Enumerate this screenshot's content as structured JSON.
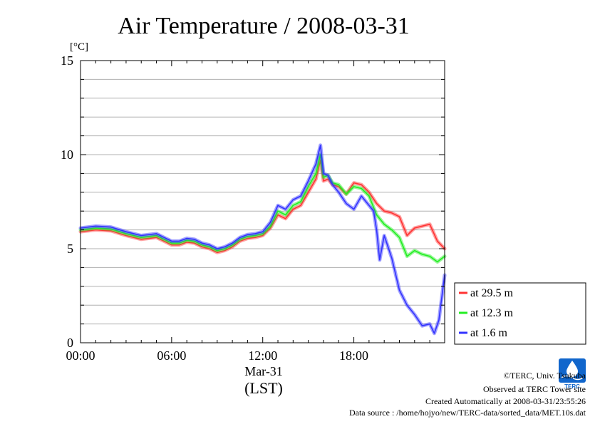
{
  "chart_data": {
    "type": "line",
    "title": "Air Temperature / 2008-03-31",
    "y_unit": "[°C]",
    "ylim": [
      0,
      15
    ],
    "yticks": [
      0,
      5,
      10,
      15
    ],
    "xlim": [
      0,
      23.98
    ],
    "x_ticks": [
      {
        "x": 0,
        "label": "00:00"
      },
      {
        "x": 6,
        "label": "06:00"
      },
      {
        "x": 12,
        "label": "12:00"
      },
      {
        "x": 18,
        "label": "18:00"
      }
    ],
    "x_sublabel": "Mar-31",
    "xlabel": "(LST)",
    "grid": true,
    "legend_position": "right",
    "series": [
      {
        "name": "at 29.5 m",
        "color": "#ff3333",
        "points": [
          [
            0,
            5.9
          ],
          [
            1,
            6.0
          ],
          [
            2,
            5.95
          ],
          [
            3,
            5.7
          ],
          [
            4,
            5.5
          ],
          [
            5,
            5.6
          ],
          [
            5.5,
            5.4
          ],
          [
            6,
            5.2
          ],
          [
            6.5,
            5.2
          ],
          [
            7,
            5.35
          ],
          [
            7.5,
            5.3
          ],
          [
            8,
            5.1
          ],
          [
            8.5,
            5.0
          ],
          [
            9,
            4.8
          ],
          [
            9.5,
            4.9
          ],
          [
            10,
            5.1
          ],
          [
            10.5,
            5.4
          ],
          [
            11,
            5.55
          ],
          [
            11.5,
            5.6
          ],
          [
            12,
            5.7
          ],
          [
            12.5,
            6.1
          ],
          [
            13,
            6.8
          ],
          [
            13.5,
            6.6
          ],
          [
            14,
            7.1
          ],
          [
            14.5,
            7.3
          ],
          [
            15,
            8.0
          ],
          [
            15.5,
            8.7
          ],
          [
            15.8,
            9.7
          ],
          [
            16,
            8.6
          ],
          [
            16.3,
            8.7
          ],
          [
            16.6,
            8.4
          ],
          [
            17,
            8.3
          ],
          [
            17.5,
            7.9
          ],
          [
            18,
            8.5
          ],
          [
            18.5,
            8.4
          ],
          [
            19,
            8.0
          ],
          [
            19.5,
            7.4
          ],
          [
            20,
            7.0
          ],
          [
            20.5,
            6.9
          ],
          [
            21,
            6.7
          ],
          [
            21.5,
            5.7
          ],
          [
            22,
            6.1
          ],
          [
            22.5,
            6.2
          ],
          [
            23,
            6.3
          ],
          [
            23.5,
            5.4
          ],
          [
            23.98,
            5.0
          ]
        ]
      },
      {
        "name": "at 12.3 m",
        "color": "#22ee22",
        "points": [
          [
            0,
            6.0
          ],
          [
            1,
            6.1
          ],
          [
            2,
            6.05
          ],
          [
            3,
            5.8
          ],
          [
            4,
            5.6
          ],
          [
            5,
            5.7
          ],
          [
            5.5,
            5.5
          ],
          [
            6,
            5.3
          ],
          [
            6.5,
            5.3
          ],
          [
            7,
            5.45
          ],
          [
            7.5,
            5.4
          ],
          [
            8,
            5.2
          ],
          [
            8.5,
            5.1
          ],
          [
            9,
            4.9
          ],
          [
            9.5,
            5.0
          ],
          [
            10,
            5.2
          ],
          [
            10.5,
            5.5
          ],
          [
            11,
            5.65
          ],
          [
            11.5,
            5.7
          ],
          [
            12,
            5.8
          ],
          [
            12.5,
            6.2
          ],
          [
            13,
            7.0
          ],
          [
            13.5,
            6.8
          ],
          [
            14,
            7.3
          ],
          [
            14.5,
            7.5
          ],
          [
            15,
            8.3
          ],
          [
            15.5,
            9.0
          ],
          [
            15.8,
            10.0
          ],
          [
            16,
            8.8
          ],
          [
            16.3,
            8.9
          ],
          [
            16.6,
            8.5
          ],
          [
            17,
            8.4
          ],
          [
            17.5,
            7.9
          ],
          [
            18,
            8.3
          ],
          [
            18.5,
            8.2
          ],
          [
            19,
            7.8
          ],
          [
            19.5,
            6.8
          ],
          [
            20,
            6.3
          ],
          [
            20.5,
            6.0
          ],
          [
            21,
            5.6
          ],
          [
            21.5,
            4.6
          ],
          [
            22,
            4.9
          ],
          [
            22.5,
            4.7
          ],
          [
            23,
            4.6
          ],
          [
            23.5,
            4.3
          ],
          [
            23.98,
            4.6
          ]
        ]
      },
      {
        "name": "at 1.6 m",
        "color": "#3333ff",
        "points": [
          [
            0,
            6.1
          ],
          [
            1,
            6.2
          ],
          [
            2,
            6.15
          ],
          [
            3,
            5.9
          ],
          [
            4,
            5.7
          ],
          [
            5,
            5.8
          ],
          [
            5.5,
            5.6
          ],
          [
            6,
            5.4
          ],
          [
            6.5,
            5.4
          ],
          [
            7,
            5.55
          ],
          [
            7.5,
            5.5
          ],
          [
            8,
            5.3
          ],
          [
            8.5,
            5.2
          ],
          [
            9,
            5.0
          ],
          [
            9.5,
            5.1
          ],
          [
            10,
            5.3
          ],
          [
            10.5,
            5.6
          ],
          [
            11,
            5.75
          ],
          [
            11.5,
            5.8
          ],
          [
            12,
            5.9
          ],
          [
            12.5,
            6.4
          ],
          [
            13,
            7.3
          ],
          [
            13.5,
            7.1
          ],
          [
            14,
            7.6
          ],
          [
            14.5,
            7.8
          ],
          [
            15,
            8.6
          ],
          [
            15.5,
            9.5
          ],
          [
            15.8,
            10.5
          ],
          [
            16,
            9.0
          ],
          [
            16.3,
            8.9
          ],
          [
            16.6,
            8.4
          ],
          [
            17,
            8.0
          ],
          [
            17.5,
            7.4
          ],
          [
            18,
            7.1
          ],
          [
            18.5,
            7.8
          ],
          [
            19,
            7.3
          ],
          [
            19.3,
            7.0
          ],
          [
            19.5,
            6.0
          ],
          [
            19.7,
            4.4
          ],
          [
            20,
            5.7
          ],
          [
            20.5,
            4.5
          ],
          [
            21,
            2.8
          ],
          [
            21.5,
            2.0
          ],
          [
            22,
            1.5
          ],
          [
            22.5,
            0.9
          ],
          [
            23,
            1.0
          ],
          [
            23.3,
            0.5
          ],
          [
            23.6,
            1.2
          ],
          [
            23.98,
            3.6
          ]
        ]
      }
    ]
  },
  "footer": {
    "line1": "©TERC, Univ. Tsukuba",
    "line2": "Observed at TERC Tower site",
    "line3": "Created Automatically at 2008-03-31/23:55:26",
    "line4": "Data source : /home/hojyo/new/TERC-data/sorted_data/MET.10s.dat"
  },
  "logo": {
    "text": "TERC",
    "color": "#1166cc"
  }
}
